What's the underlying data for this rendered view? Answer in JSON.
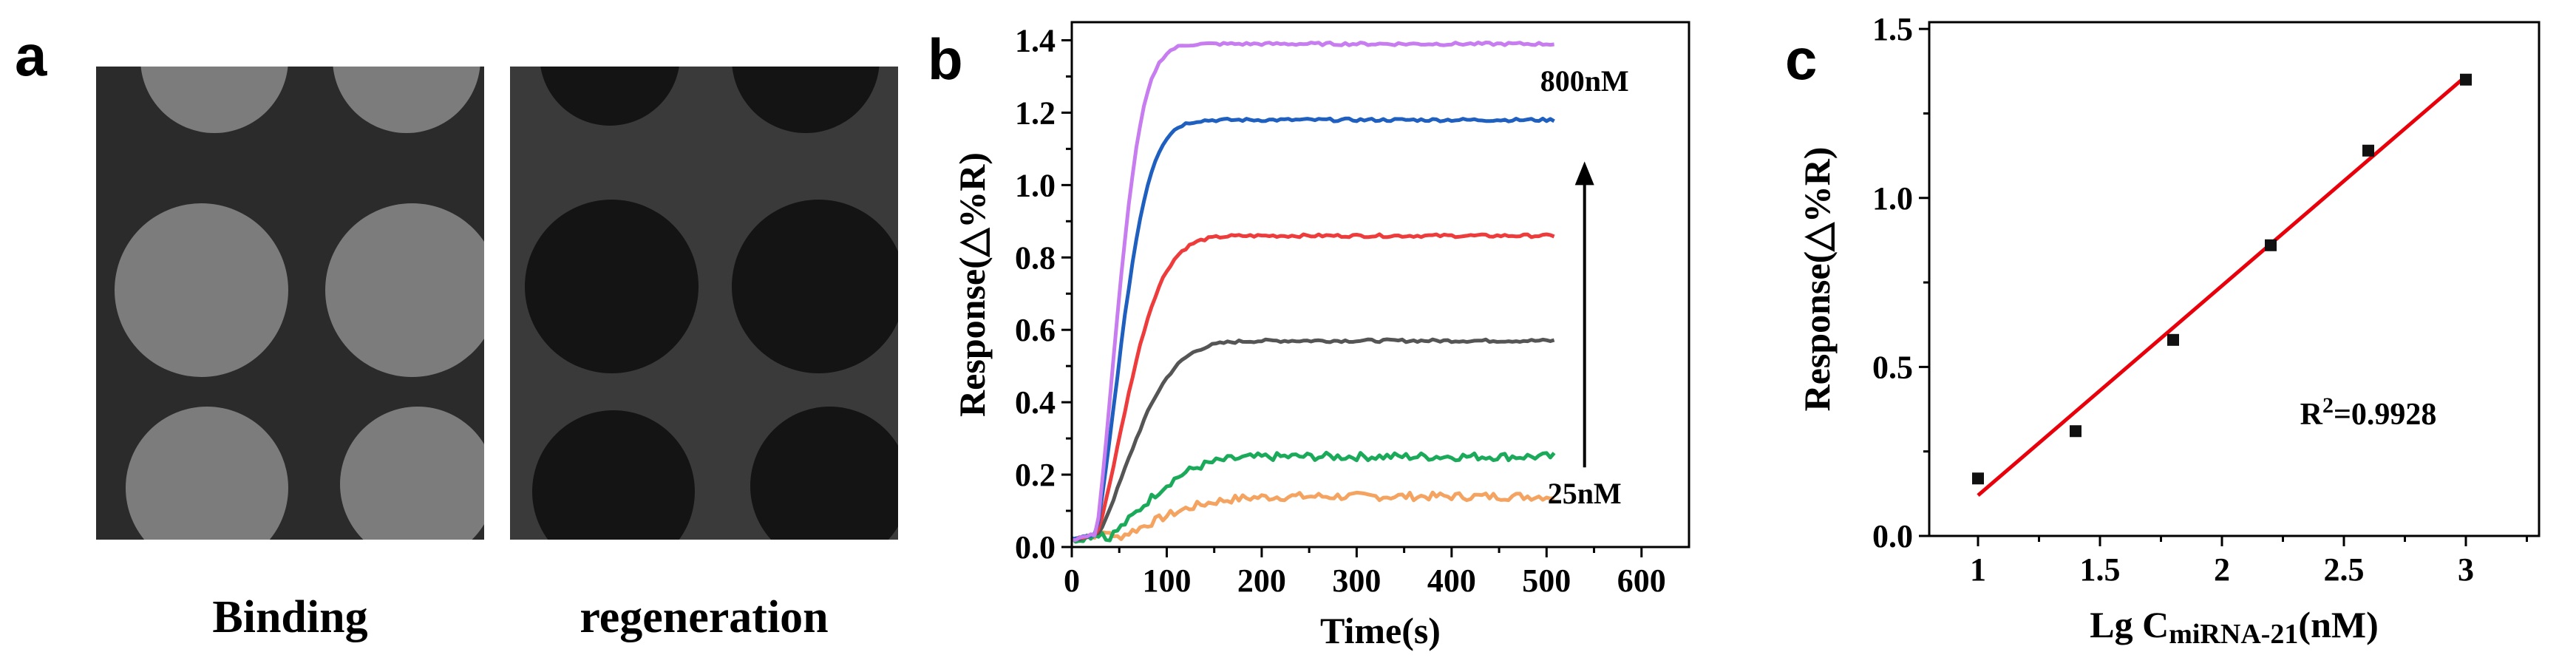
{
  "panels": {
    "a": {
      "letter": "a",
      "images": [
        {
          "caption": "Binding",
          "spot_color": "#7c7c7c",
          "bg_color": "#2b2b2b"
        },
        {
          "caption": "regeneration",
          "spot_color": "#141414",
          "bg_color": "#3a3a3a"
        }
      ]
    },
    "b": {
      "letter": "b"
    },
    "c": {
      "letter": "c"
    }
  },
  "chart_data": [
    {
      "type": "line",
      "panel": "b",
      "xlabel": "Time(s)",
      "ylabel": "Response(△%R)",
      "xlim": [
        0,
        650
      ],
      "ylim": [
        0,
        1.45
      ],
      "xticks": [
        0,
        100,
        200,
        300,
        400,
        500,
        600
      ],
      "yticks": [
        0.0,
        0.2,
        0.4,
        0.6,
        0.8,
        1.0,
        1.2,
        1.4
      ],
      "xtick_labels": [
        "0",
        "100",
        "200",
        "300",
        "400",
        "500",
        "600"
      ],
      "ytick_labels": [
        "0.0",
        "0.2",
        "0.4",
        "0.6",
        "0.8",
        "1.0",
        "1.2",
        "1.4"
      ],
      "series": [
        {
          "color": "#f4a460",
          "plateau": 0.14,
          "onset": 40,
          "tau": 90
        },
        {
          "color": "#1aaa5a",
          "plateau": 0.25,
          "onset": 35,
          "tau": 80
        },
        {
          "color": "#555555",
          "plateau": 0.57,
          "onset": 25,
          "tau": 70
        },
        {
          "color": "#ee3b3b",
          "plateau": 0.86,
          "onset": 25,
          "tau": 60
        },
        {
          "color": "#1f5fbf",
          "plateau": 1.18,
          "onset": 25,
          "tau": 48
        },
        {
          "color": "#c77df0",
          "plateau": 1.39,
          "onset": 25,
          "tau": 42
        }
      ],
      "x_end": 510,
      "annotations": {
        "top": "800nM",
        "bottom": "25nM"
      }
    },
    {
      "type": "scatter",
      "panel": "c",
      "xlabel_prefix": "Lg C",
      "xlabel_sub": "miRNA-21",
      "xlabel_suffix": "(nM)",
      "ylabel": "Response(△%R)",
      "xlim": [
        0.8,
        3.3
      ],
      "ylim": [
        0,
        1.52
      ],
      "xticks": [
        1,
        1.5,
        2,
        2.5,
        3
      ],
      "yticks": [
        0.0,
        0.5,
        1.0,
        1.5
      ],
      "xtick_labels": [
        "1",
        "1.5",
        "2",
        "2.5",
        "3"
      ],
      "ytick_labels": [
        "0.0",
        "0.5",
        "1.0",
        "1.5"
      ],
      "points": [
        {
          "x": 1.0,
          "y": 0.17
        },
        {
          "x": 1.4,
          "y": 0.31
        },
        {
          "x": 1.8,
          "y": 0.58
        },
        {
          "x": 2.2,
          "y": 0.86
        },
        {
          "x": 2.6,
          "y": 1.14
        },
        {
          "x": 3.0,
          "y": 1.35
        }
      ],
      "fit": {
        "x0": 1.0,
        "y0": 0.12,
        "x1": 3.0,
        "y1": 1.36,
        "color": "#e8000b"
      },
      "r2_label_prefix": "R",
      "r2_label_sup": "2",
      "r2_label_suffix": "=0.9928"
    }
  ]
}
